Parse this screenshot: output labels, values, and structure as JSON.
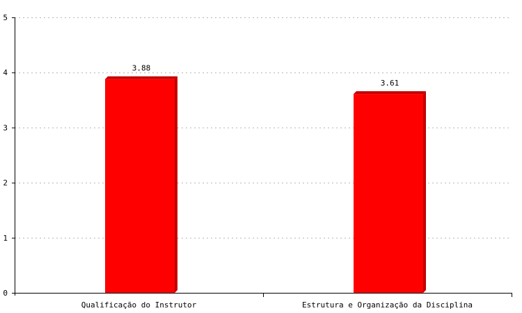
{
  "chart_data": {
    "type": "bar",
    "title": "",
    "xlabel": "",
    "ylabel": "",
    "categories": [
      "Qualificação do Instrutor",
      "Estrutura e Organização da Disciplina"
    ],
    "values": [
      3.88,
      3.61
    ],
    "value_labels": [
      "3.88",
      "3.61"
    ],
    "ylim": [
      0,
      5
    ],
    "yticks": [
      0,
      1,
      2,
      3,
      4,
      5
    ],
    "grid": true,
    "grid_style": "dotted",
    "legend": "none",
    "colors": {
      "bar": "#ff0000",
      "bar_shade": "#c40000",
      "grid": "#b4b4b4",
      "axis": "#000000"
    }
  }
}
